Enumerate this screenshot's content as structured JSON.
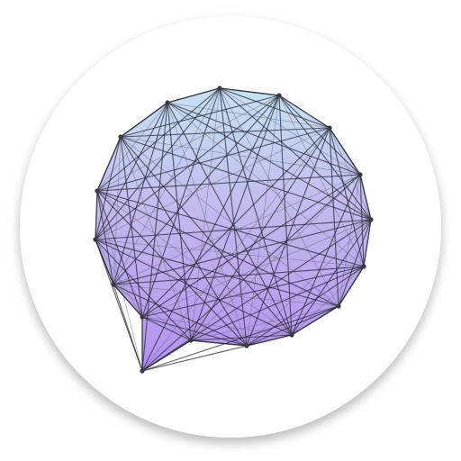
{
  "app_icon": {
    "icon_name": "chat-bubble-mesh-icon",
    "colors": {
      "background": "#ffffff",
      "disc": "#ffffff",
      "disc_shadow": "#000000",
      "gradient_top": "#c6e2f4",
      "gradient_mid": "#c1b4ee",
      "gradient_bottom": "#b391f2",
      "edge_dark": "#2a2a35",
      "edge_light": "#6a6a78",
      "node": "#3a3a44"
    }
  }
}
